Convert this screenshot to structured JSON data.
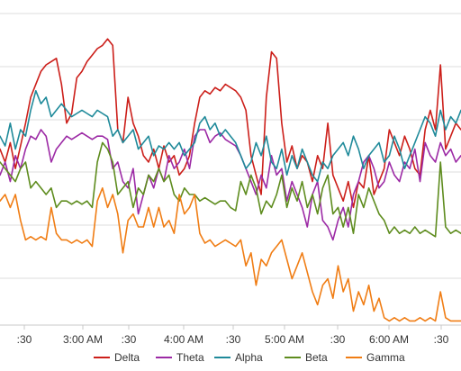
{
  "chart_data": {
    "type": "line",
    "title": "",
    "xlabel": "",
    "ylabel": "",
    "grid": true,
    "legend_position": "bottom",
    "x_tick_labels": [
      ":30",
      "3:00 AM",
      ":30",
      "4:00 AM",
      ":30",
      "5:00 AM",
      ":30",
      "6:00 AM",
      ":30"
    ],
    "y_axis": {
      "range": [
        0,
        100
      ],
      "tick_labels_shown": false
    },
    "x": [
      0,
      2,
      4,
      6,
      8,
      10,
      12,
      14,
      16,
      18,
      20,
      22,
      24,
      26,
      28,
      30,
      32,
      34,
      36,
      38,
      40,
      42,
      44,
      46,
      48,
      50,
      52,
      54,
      56,
      58,
      60,
      62,
      64,
      66,
      68,
      70,
      72,
      74,
      76,
      78,
      80,
      82,
      84,
      86,
      88,
      90,
      92,
      94,
      96,
      98,
      100,
      102,
      104,
      106,
      108,
      110,
      112,
      114,
      116,
      118,
      120,
      122,
      124,
      126,
      128,
      130,
      132,
      134,
      136,
      138,
      140,
      142,
      144,
      146,
      148,
      150,
      152,
      154,
      156,
      158,
      160,
      162,
      164,
      166,
      168,
      170,
      172,
      174,
      176,
      178,
      180
    ],
    "series": [
      {
        "name": "Delta",
        "color": "#cc1f1a",
        "values": [
          54,
          50,
          56,
          48,
          55,
          62,
          70,
          74,
          78,
          80,
          81,
          82,
          74,
          62,
          65,
          76,
          78,
          81,
          83,
          85,
          86,
          88,
          86,
          60,
          56,
          70,
          62,
          58,
          52,
          50,
          54,
          48,
          55,
          50,
          52,
          46,
          48,
          52,
          62,
          70,
          72,
          71,
          73,
          72,
          74,
          73,
          72,
          70,
          66,
          52,
          46,
          40,
          70,
          84,
          82,
          62,
          50,
          55,
          48,
          52,
          50,
          44,
          52,
          48,
          62,
          46,
          42,
          38,
          44,
          36,
          44,
          42,
          52,
          40,
          44,
          48,
          60,
          56,
          52,
          58,
          54,
          48,
          46,
          60,
          66,
          60,
          80,
          54,
          58,
          62,
          60
        ]
      },
      {
        "name": "Theta",
        "color": "#9c2aa5",
        "values": [
          46,
          50,
          44,
          52,
          48,
          54,
          58,
          57,
          60,
          58,
          50,
          54,
          56,
          58,
          57,
          58,
          59,
          58,
          57,
          58,
          58,
          57,
          48,
          50,
          44,
          42,
          48,
          34,
          40,
          46,
          42,
          48,
          44,
          52,
          48,
          50,
          54,
          48,
          58,
          60,
          60,
          56,
          58,
          59,
          57,
          56,
          55,
          52,
          48,
          44,
          40,
          46,
          42,
          52,
          46,
          48,
          38,
          44,
          40,
          36,
          30,
          40,
          44,
          32,
          30,
          26,
          32,
          36,
          30,
          40,
          44,
          50,
          52,
          48,
          42,
          44,
          50,
          46,
          44,
          50,
          48,
          54,
          44,
          56,
          52,
          50,
          56,
          52,
          54,
          50,
          52
        ]
      },
      {
        "name": "Alpha",
        "color": "#1f8a9a",
        "values": [
          58,
          55,
          62,
          54,
          60,
          58,
          66,
          72,
          68,
          70,
          64,
          66,
          68,
          66,
          64,
          65,
          66,
          65,
          64,
          66,
          65,
          64,
          58,
          60,
          56,
          58,
          60,
          54,
          56,
          58,
          52,
          55,
          54,
          56,
          54,
          56,
          52,
          54,
          56,
          62,
          64,
          60,
          62,
          58,
          60,
          58,
          56,
          52,
          48,
          50,
          56,
          52,
          58,
          50,
          48,
          54,
          46,
          52,
          48,
          54,
          50,
          46,
          44,
          50,
          48,
          52,
          54,
          56,
          52,
          58,
          54,
          48,
          52,
          54,
          56,
          50,
          52,
          58,
          54,
          48,
          52,
          56,
          60,
          64,
          62,
          58,
          66,
          60,
          64,
          62,
          66
        ]
      },
      {
        "name": "Beta",
        "color": "#5e8c1e",
        "values": [
          50,
          48,
          46,
          44,
          48,
          50,
          42,
          44,
          42,
          40,
          42,
          36,
          38,
          38,
          37,
          38,
          37,
          38,
          36,
          50,
          56,
          54,
          50,
          40,
          42,
          44,
          36,
          42,
          40,
          46,
          44,
          48,
          44,
          46,
          40,
          38,
          42,
          40,
          40,
          38,
          39,
          38,
          37,
          38,
          38,
          36,
          35,
          44,
          40,
          46,
          42,
          34,
          38,
          36,
          40,
          46,
          36,
          42,
          38,
          44,
          36,
          40,
          34,
          42,
          46,
          34,
          36,
          30,
          36,
          28,
          40,
          36,
          42,
          38,
          34,
          32,
          28,
          30,
          28,
          29,
          28,
          30,
          28,
          29,
          28,
          27,
          50,
          30,
          28,
          29,
          28
        ]
      },
      {
        "name": "Gamma",
        "color": "#f07d14",
        "values": [
          38,
          40,
          36,
          40,
          32,
          26,
          27,
          26,
          27,
          26,
          36,
          28,
          26,
          26,
          25,
          26,
          25,
          26,
          24,
          38,
          42,
          36,
          40,
          34,
          22,
          32,
          34,
          30,
          30,
          36,
          30,
          36,
          30,
          32,
          28,
          40,
          34,
          36,
          40,
          28,
          25,
          26,
          24,
          25,
          26,
          25,
          24,
          26,
          18,
          22,
          12,
          20,
          18,
          22,
          24,
          26,
          20,
          14,
          18,
          22,
          16,
          10,
          6,
          12,
          14,
          8,
          18,
          10,
          14,
          4,
          10,
          6,
          12,
          4,
          8,
          2,
          1,
          2,
          1,
          2,
          1,
          1,
          2,
          1,
          2,
          1,
          10,
          2,
          1,
          1,
          1
        ]
      }
    ]
  }
}
